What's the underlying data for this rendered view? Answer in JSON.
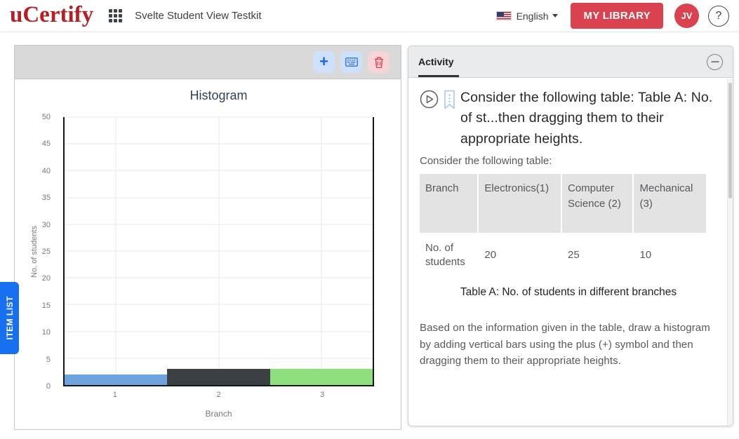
{
  "header": {
    "logo_text": "uCertify",
    "course_title": "Svelte Student View Testkit",
    "language_label": "English",
    "my_library_label": "MY LIBRARY",
    "avatar_initials": "JV",
    "help_label": "?"
  },
  "item_list_tab_label": "ITEM LIST",
  "chart_toolbar": {
    "add_label": "+"
  },
  "chart_data": {
    "type": "bar",
    "title": "Histogram",
    "xlabel": "Branch",
    "ylabel": "No. of students",
    "categories": [
      "1",
      "2",
      "3"
    ],
    "values": [
      2,
      3,
      3
    ],
    "bar_colors": [
      "#6ea3dd",
      "#3d4043",
      "#8ee07f"
    ],
    "ylim": [
      0,
      50
    ],
    "ytick_step": 5,
    "grid": true,
    "legend": false,
    "target_values_from_table": [
      20,
      25,
      10
    ]
  },
  "activity": {
    "tab_label": "Activity",
    "question_title": "Consider the following table: Table A: No. of st...then dragging them to their appropriate heights.",
    "table_intro": "Consider the following table:",
    "table": {
      "headers": [
        "Branch",
        "Electronics(1)",
        "Computer Science (2)",
        "Mechanical (3)"
      ],
      "rows": [
        [
          "No. of students",
          "20",
          "25",
          "10"
        ]
      ]
    },
    "table_caption": "Table A: No. of students in different branches",
    "instruction": "Based on the information given in the table, draw a histogram by adding vertical bars using the plus (+) symbol and then dragging them to their appropriate heights."
  },
  "colors": {
    "brand_red": "#b42025",
    "button_red": "#d9424e",
    "accent_blue": "#1670f0",
    "toolbar_gray": "#d9d9d9",
    "panel_header_gray": "#e9ebed"
  }
}
